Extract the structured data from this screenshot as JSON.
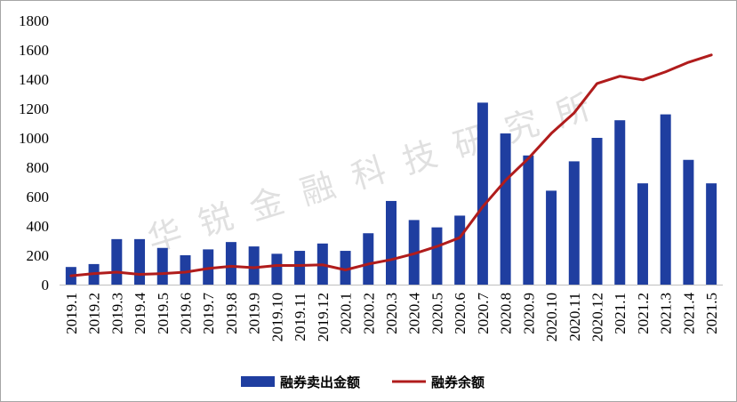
{
  "watermark": "华锐金融科技研究所",
  "chart_data": {
    "type": "bar",
    "categories": [
      "2019.1",
      "2019.2",
      "2019.3",
      "2019.4",
      "2019.5",
      "2019.6",
      "2019.7",
      "2019.8",
      "2019.9",
      "2019.10",
      "2019.11",
      "2019.12",
      "2020.1",
      "2020.2",
      "2020.3",
      "2020.4",
      "2020.5",
      "2020.6",
      "2020.7",
      "2020.8",
      "2020.9",
      "2020.10",
      "2020.11",
      "2020.12",
      "2021.1",
      "2021.2",
      "2021.3",
      "2021.4",
      "2021.5"
    ],
    "ylim": [
      0,
      1800
    ],
    "yticks": [
      0,
      200,
      400,
      600,
      800,
      1000,
      1200,
      1400,
      1600,
      1800
    ],
    "grid": false,
    "legend_position": "bottom",
    "series": [
      {
        "name": "融券卖出金额",
        "type": "bar",
        "color": "#1f3ea0",
        "values": [
          120,
          140,
          310,
          310,
          250,
          200,
          240,
          290,
          260,
          210,
          230,
          280,
          230,
          350,
          570,
          440,
          390,
          470,
          1240,
          1030,
          880,
          640,
          840,
          1000,
          1120,
          690,
          1160,
          850,
          690
        ]
      },
      {
        "name": "融券余额",
        "type": "line",
        "color": "#b01c1c",
        "values": [
          60,
          75,
          85,
          70,
          75,
          85,
          110,
          125,
          115,
          130,
          130,
          135,
          100,
          140,
          170,
          210,
          260,
          320,
          530,
          710,
          860,
          1030,
          1170,
          1370,
          1420,
          1395,
          1450,
          1515,
          1565
        ]
      }
    ]
  }
}
